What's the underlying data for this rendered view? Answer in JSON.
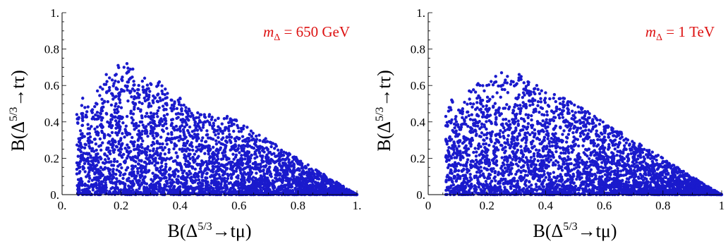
{
  "chart_data": [
    {
      "type": "scatter",
      "title": "",
      "annotation": "mΔ = 650 GeV",
      "annotation_parts": {
        "symbol": "m",
        "sub": "Δ",
        "rest": " = 650 GeV"
      },
      "xlabel": "B(Δ⁵ᐟ³→tμ)",
      "xlabel_parts": {
        "pre": "B(Δ",
        "sup": "5/3",
        "post": "→tμ)"
      },
      "ylabel_parts": {
        "pre": "B(Δ",
        "sup": "5/3",
        "post": "→tτ)"
      },
      "xlim": [
        0,
        1
      ],
      "ylim": [
        0,
        1
      ],
      "xticks": [
        0,
        0.2,
        0.4,
        0.6,
        0.8,
        1
      ],
      "xtick_labels": [
        "0.",
        "0.2",
        "0.4",
        "0.6",
        "0.8",
        "1."
      ],
      "yticks": [
        0,
        0.2,
        0.4,
        0.6,
        0.8,
        1
      ],
      "ytick_labels": [
        "0.",
        "0.2",
        "0.4",
        "0.6",
        "0.8",
        "1."
      ],
      "grid": false,
      "point_color": "#1a1acc",
      "region": {
        "x_min": 0.05,
        "x_max": 1.0,
        "triangle_from": 0.6,
        "triangle_y_at_from": 0.4
      },
      "outline_points": [
        {
          "x": 0.05,
          "y": 0.44
        },
        {
          "x": 0.07,
          "y": 0.53
        },
        {
          "x": 0.1,
          "y": 0.46
        },
        {
          "x": 0.12,
          "y": 0.57
        },
        {
          "x": 0.15,
          "y": 0.66
        },
        {
          "x": 0.17,
          "y": 0.63
        },
        {
          "x": 0.19,
          "y": 0.71
        },
        {
          "x": 0.21,
          "y": 0.7
        },
        {
          "x": 0.22,
          "y": 0.72
        },
        {
          "x": 0.24,
          "y": 0.69
        },
        {
          "x": 0.26,
          "y": 0.6
        },
        {
          "x": 0.28,
          "y": 0.64
        },
        {
          "x": 0.3,
          "y": 0.61
        },
        {
          "x": 0.33,
          "y": 0.62
        },
        {
          "x": 0.35,
          "y": 0.58
        },
        {
          "x": 0.37,
          "y": 0.52
        },
        {
          "x": 0.4,
          "y": 0.53
        },
        {
          "x": 0.43,
          "y": 0.47
        },
        {
          "x": 0.46,
          "y": 0.45
        },
        {
          "x": 0.5,
          "y": 0.44
        },
        {
          "x": 0.53,
          "y": 0.42
        },
        {
          "x": 0.56,
          "y": 0.43
        },
        {
          "x": 0.59,
          "y": 0.41
        }
      ]
    },
    {
      "type": "scatter",
      "title": "",
      "annotation": "mΔ = 1 TeV",
      "annotation_parts": {
        "symbol": "m",
        "sub": "Δ",
        "rest": " = 1 TeV"
      },
      "xlabel_parts": {
        "pre": "B(Δ",
        "sup": "5/3",
        "post": "→tμ)"
      },
      "ylabel_parts": {
        "pre": "B(Δ",
        "sup": "5/3",
        "post": "→tτ)"
      },
      "xlim": [
        0,
        1
      ],
      "ylim": [
        0,
        1
      ],
      "xticks": [
        0,
        0.2,
        0.4,
        0.6,
        0.8,
        1
      ],
      "xtick_labels": [
        "0",
        "0.2",
        "0.4",
        "0.6",
        "0.8",
        "1"
      ],
      "yticks": [
        0,
        0.2,
        0.4,
        0.6,
        0.8,
        1
      ],
      "ytick_labels": [
        "0.",
        "0.2",
        "0.4",
        "0.6",
        "0.8",
        "1."
      ],
      "grid": false,
      "point_color": "#1a1acc",
      "region": {
        "x_min": 0.06,
        "x_max": 1.0,
        "triangle_from": 0.47,
        "triangle_y_at_from": 0.53
      },
      "outline_points": [
        {
          "x": 0.06,
          "y": 0.43
        },
        {
          "x": 0.08,
          "y": 0.52
        },
        {
          "x": 0.11,
          "y": 0.46
        },
        {
          "x": 0.14,
          "y": 0.57
        },
        {
          "x": 0.17,
          "y": 0.61
        },
        {
          "x": 0.2,
          "y": 0.6
        },
        {
          "x": 0.23,
          "y": 0.65
        },
        {
          "x": 0.25,
          "y": 0.67
        },
        {
          "x": 0.27,
          "y": 0.65
        },
        {
          "x": 0.29,
          "y": 0.62
        },
        {
          "x": 0.31,
          "y": 0.66
        },
        {
          "x": 0.34,
          "y": 0.62
        },
        {
          "x": 0.37,
          "y": 0.6
        },
        {
          "x": 0.4,
          "y": 0.56
        },
        {
          "x": 0.43,
          "y": 0.55
        },
        {
          "x": 0.46,
          "y": 0.53
        }
      ]
    }
  ]
}
